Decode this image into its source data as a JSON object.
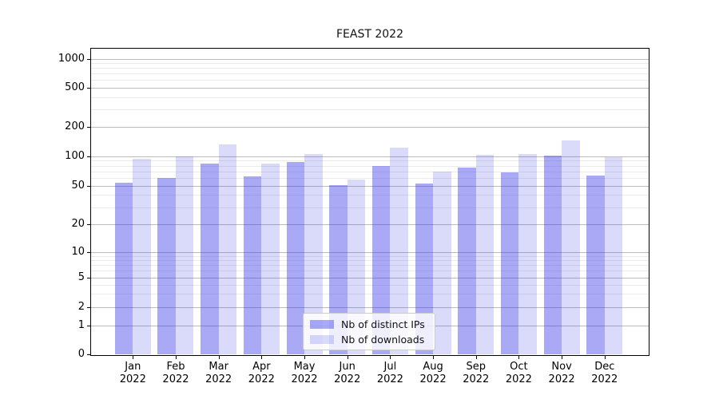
{
  "title": "FEAST 2022",
  "colors": {
    "bar_ips": "rgba(50,50,234,0.42)",
    "bar_downloads": "rgba(50,50,234,0.18)",
    "grid_major": "#bcbcbc",
    "grid_minor": "#ebebeb",
    "spine": "#000000",
    "text": "#111111",
    "legend_border": "#cccccc",
    "legend_background": "rgba(255,255,255,0.8)"
  },
  "chart_data": {
    "type": "bar",
    "title": "FEAST 2022",
    "categories": [
      "Jan 2022",
      "Feb 2022",
      "Mar 2022",
      "Apr 2022",
      "May 2022",
      "Jun 2022",
      "Jul 2022",
      "Aug 2022",
      "Sep 2022",
      "Oct 2022",
      "Nov 2022",
      "Dec 2022"
    ],
    "series": [
      {
        "name": "Nb of distinct IPs",
        "values": [
          54,
          60,
          84,
          62,
          87,
          51,
          79,
          53,
          76,
          68,
          102,
          64
        ]
      },
      {
        "name": "Nb of downloads",
        "values": [
          94,
          100,
          132,
          84,
          106,
          58,
          123,
          70,
          103,
          105,
          145,
          98
        ]
      }
    ],
    "xlabel": "",
    "ylabel": "",
    "yscale": "symlog",
    "ylim": [
      0,
      1300
    ],
    "ytick_values": [
      0,
      1,
      2,
      5,
      10,
      20,
      50,
      100,
      200,
      500,
      1000
    ],
    "ytick_labels": [
      "0",
      "1",
      "2",
      "5",
      "10",
      "20",
      "50",
      "100",
      "200",
      "500",
      "1000"
    ],
    "minor_ytick_values": [
      3,
      4,
      6,
      7,
      8,
      9,
      30,
      40,
      60,
      70,
      80,
      90,
      300,
      400,
      600,
      700,
      800,
      900
    ],
    "grid": true,
    "legend_position": "lower center",
    "legend_entries": [
      "Nb of distinct IPs",
      "Nb of downloads"
    ]
  }
}
